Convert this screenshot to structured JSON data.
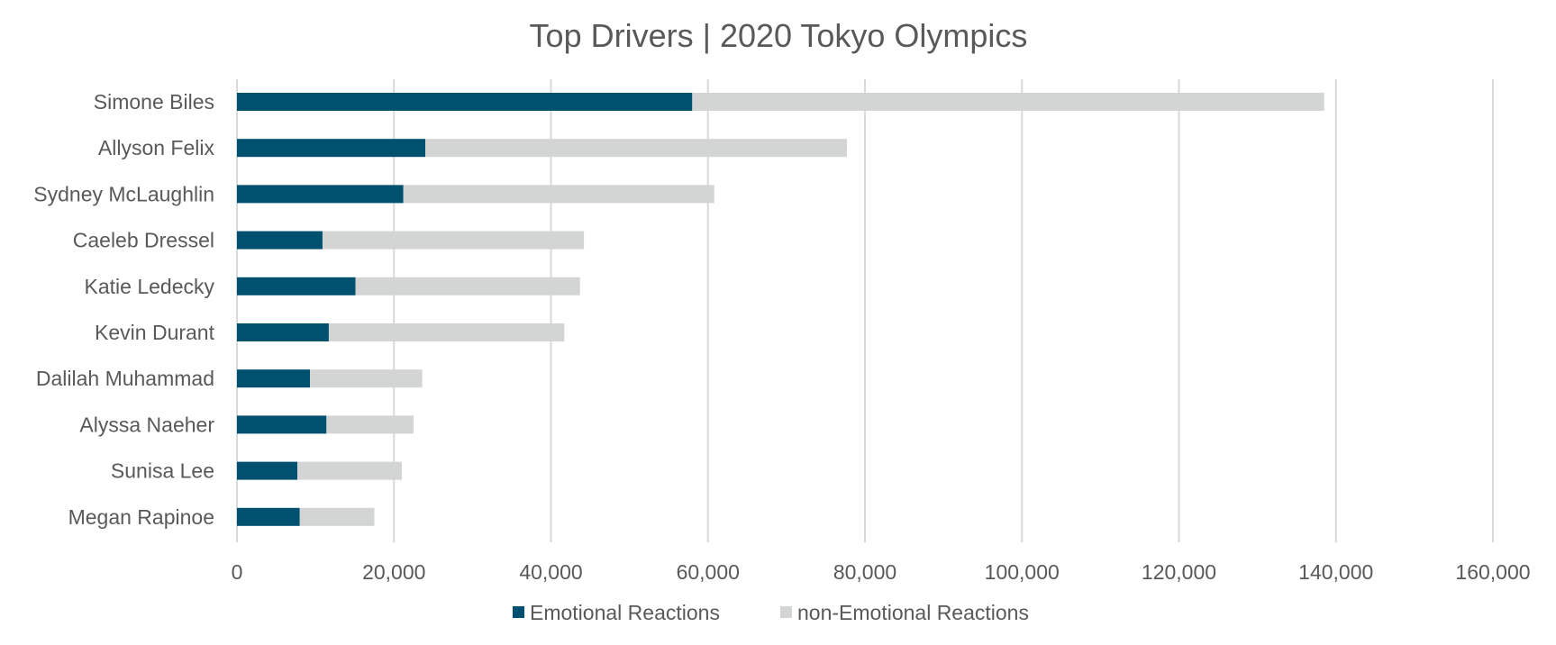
{
  "chart_data": {
    "type": "bar",
    "orientation": "horizontal",
    "stacked": true,
    "title": "Top Drivers | 2020 Tokyo Olympics",
    "categories": [
      "Simone Biles",
      "Allyson Felix",
      "Sydney McLaughlin",
      "Caeleb Dressel",
      "Katie Ledecky",
      "Kevin Durant",
      "Dalilah Muhammad",
      "Alyssa Naeher",
      "Sunisa Lee",
      "Megan Rapinoe"
    ],
    "series": [
      {
        "name": "Emotional Reactions",
        "color": "#00506f",
        "values": [
          58000,
          24000,
          21200,
          10900,
          15100,
          11700,
          9300,
          11400,
          7700,
          8000
        ]
      },
      {
        "name": "non-Emotional Reactions",
        "color": "#d3d4d4",
        "values": [
          80500,
          53700,
          39600,
          33300,
          28600,
          30000,
          14300,
          11100,
          13300,
          9500
        ]
      }
    ],
    "xlim": [
      0,
      160000
    ],
    "xticks": [
      0,
      20000,
      40000,
      60000,
      80000,
      100000,
      120000,
      140000,
      160000
    ],
    "xtick_labels": [
      "0",
      "20,000",
      "40,000",
      "60,000",
      "80,000",
      "100,000",
      "120,000",
      "140,000",
      "160,000"
    ],
    "grid": "vertical",
    "legend": "bottom-center"
  }
}
